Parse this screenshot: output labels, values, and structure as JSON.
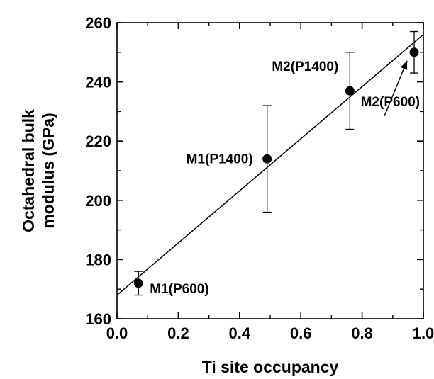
{
  "chart_data": {
    "type": "scatter",
    "title": "",
    "xlabel": "Ti site occupancy",
    "ylabel": [
      "Octahedral bulk",
      "modulus (GPa)"
    ],
    "xlim": [
      0.0,
      1.0
    ],
    "ylim": [
      160,
      260
    ],
    "x_ticks": [
      "0.0",
      "0.2",
      "0.4",
      "0.6",
      "0.8",
      "1.0"
    ],
    "y_ticks": [
      "160",
      "180",
      "200",
      "220",
      "240",
      "260"
    ],
    "grid": false,
    "legend": "none",
    "points": [
      {
        "label": "M1(P600)",
        "x": 0.07,
        "y": 172,
        "err_low": 168,
        "err_high": 176
      },
      {
        "label": "M1(P1400)",
        "x": 0.49,
        "y": 214,
        "err_low": 196,
        "err_high": 232
      },
      {
        "label": "M2(P1400)",
        "x": 0.76,
        "y": 237,
        "err_low": 224,
        "err_high": 250
      },
      {
        "label": "M2(P600)",
        "x": 0.97,
        "y": 250,
        "err_low": 243,
        "err_high": 257
      }
    ],
    "fit_line": {
      "x": [
        0.0,
        1.0
      ],
      "y": [
        168,
        256
      ]
    },
    "colors": {
      "marker": "#000000",
      "line": "#000000",
      "axes": "#000000"
    }
  }
}
